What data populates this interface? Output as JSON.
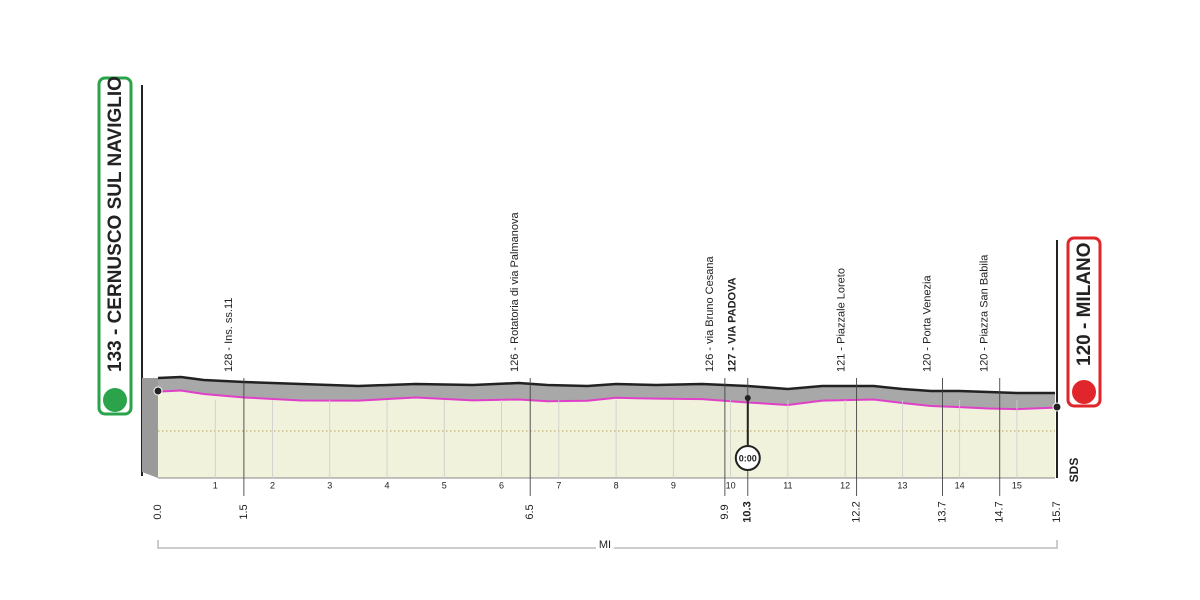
{
  "start_label": "133 - CERNUSCO SUL NAVIGLIO",
  "finish_label": "120 - MILANO",
  "xlim": [
    0,
    15.7
  ],
  "km_ticks": [
    1,
    2,
    3,
    4,
    5,
    6,
    7,
    8,
    9,
    10,
    11,
    12,
    13,
    14,
    15
  ],
  "distance_marks": [
    {
      "value": 0,
      "label": "0.0"
    },
    1.5,
    6.5,
    9.9,
    {
      "value": 10.3,
      "label": "10.3",
      "bold": true
    },
    12.2,
    13.7,
    14.7,
    15.7
  ],
  "waypoints": [
    {
      "label": "128 - Ins. ss.11",
      "km": 1.5
    },
    {
      "label": "126 - Rotatoria di via Palmanova",
      "km": 6.5
    },
    {
      "label": "126 - via Bruno Cesana",
      "km": 9.9
    },
    {
      "label": "127 - VIA PADOVA",
      "km": 10.3,
      "bold": true
    },
    {
      "label": "121 - Piazzale Loreto",
      "km": 12.2
    },
    {
      "label": "120 - Porta Venezia",
      "km": 13.7
    },
    {
      "label": "120 - Piazza San Babila",
      "km": 14.7
    }
  ],
  "time_check": {
    "label": "0:00",
    "km": 10.3
  },
  "unit": "MI",
  "logo": "SDS"
}
